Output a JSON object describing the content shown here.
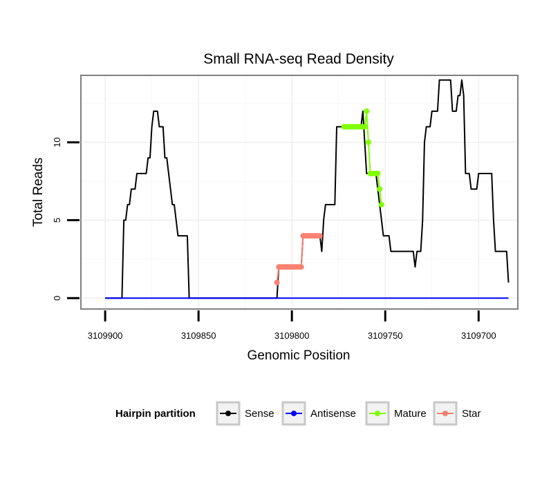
{
  "chart_data": {
    "type": "line",
    "title": "Small RNA-seq Read Density",
    "xlabel": "Genomic Position",
    "ylabel": "Total Reads",
    "x_reversed": true,
    "xlim": [
      3109679,
      3109913
    ],
    "ylim": [
      -0.7,
      14.3
    ],
    "x_ticks": [
      3109900,
      3109850,
      3109800,
      3109750,
      3109700
    ],
    "y_ticks": [
      0,
      5,
      10
    ],
    "grid": true,
    "legend_position": "bottom",
    "legend": {
      "title": "Hairpin partition",
      "entries": [
        {
          "label": "Sense",
          "color": "#000000"
        },
        {
          "label": "Antisense",
          "color": "#0000ff"
        },
        {
          "label": "Mature",
          "color": "#7fff00"
        },
        {
          "label": "Star",
          "color": "#fa8072"
        }
      ]
    },
    "series": [
      {
        "name": "Sense",
        "color": "#000000",
        "points": [
          [
            3109900,
            0
          ],
          [
            3109891,
            0
          ],
          [
            3109890,
            5
          ],
          [
            3109889,
            5
          ],
          [
            3109888,
            6
          ],
          [
            3109887,
            6
          ],
          [
            3109886,
            7
          ],
          [
            3109884,
            7
          ],
          [
            3109883,
            8
          ],
          [
            3109878,
            8
          ],
          [
            3109877,
            9
          ],
          [
            3109876,
            9
          ],
          [
            3109875,
            11
          ],
          [
            3109874,
            12
          ],
          [
            3109872,
            12
          ],
          [
            3109871,
            11
          ],
          [
            3109869,
            11
          ],
          [
            3109868,
            9
          ],
          [
            3109867,
            9
          ],
          [
            3109866,
            8
          ],
          [
            3109865,
            7
          ],
          [
            3109864,
            6
          ],
          [
            3109863,
            6
          ],
          [
            3109862,
            5
          ],
          [
            3109861,
            4
          ],
          [
            3109856,
            4
          ],
          [
            3109855,
            0
          ],
          [
            3109808,
            0
          ],
          [
            3109807,
            2
          ],
          [
            3109795,
            2
          ],
          [
            3109794,
            4
          ],
          [
            3109785,
            4
          ],
          [
            3109784,
            3
          ],
          [
            3109783,
            5
          ],
          [
            3109782,
            6
          ],
          [
            3109777,
            6
          ],
          [
            3109776,
            11
          ],
          [
            3109763,
            11
          ],
          [
            3109762,
            12
          ],
          [
            3109761,
            10
          ],
          [
            3109760,
            8
          ],
          [
            3109755,
            8
          ],
          [
            3109754,
            7
          ],
          [
            3109753,
            6
          ],
          [
            3109752,
            5
          ],
          [
            3109751,
            4
          ],
          [
            3109748,
            4
          ],
          [
            3109747,
            3
          ],
          [
            3109735,
            3
          ],
          [
            3109734,
            2
          ],
          [
            3109733,
            3
          ],
          [
            3109731,
            3
          ],
          [
            3109730,
            5
          ],
          [
            3109729,
            10
          ],
          [
            3109728,
            11
          ],
          [
            3109726,
            11
          ],
          [
            3109725,
            12
          ],
          [
            3109722,
            12
          ],
          [
            3109721,
            14
          ],
          [
            3109715,
            14
          ],
          [
            3109714,
            12
          ],
          [
            3109712,
            12
          ],
          [
            3109711,
            13
          ],
          [
            3109710,
            13
          ],
          [
            3109709,
            14
          ],
          [
            3109708,
            13
          ],
          [
            3109707,
            8
          ],
          [
            3109705,
            8
          ],
          [
            3109704,
            7
          ],
          [
            3109701,
            7
          ],
          [
            3109700,
            8
          ],
          [
            3109693,
            8
          ],
          [
            3109692,
            5
          ],
          [
            3109691,
            3
          ],
          [
            3109685,
            3
          ],
          [
            3109684,
            1
          ]
        ]
      },
      {
        "name": "Antisense",
        "color": "#0000ff",
        "points": [
          [
            3109900,
            0
          ],
          [
            3109684,
            0
          ]
        ]
      },
      {
        "name": "Mature",
        "color": "#7fff00",
        "points": [
          [
            3109772,
            11
          ],
          [
            3109771,
            11
          ],
          [
            3109770,
            11
          ],
          [
            3109769,
            11
          ],
          [
            3109768,
            11
          ],
          [
            3109767,
            11
          ],
          [
            3109766,
            11
          ],
          [
            3109765,
            11
          ],
          [
            3109764,
            11
          ],
          [
            3109763,
            11
          ],
          [
            3109762,
            11
          ],
          [
            3109761,
            11
          ],
          [
            3109760,
            12
          ],
          [
            3109759,
            10
          ],
          [
            3109758,
            8
          ],
          [
            3109757,
            8
          ],
          [
            3109756,
            8
          ],
          [
            3109755,
            8
          ],
          [
            3109754,
            8
          ],
          [
            3109753,
            7
          ],
          [
            3109752,
            6
          ]
        ]
      },
      {
        "name": "Star",
        "color": "#fa8072",
        "points": [
          [
            3109808,
            1
          ],
          [
            3109807,
            2
          ],
          [
            3109806,
            2
          ],
          [
            3109805,
            2
          ],
          [
            3109804,
            2
          ],
          [
            3109803,
            2
          ],
          [
            3109802,
            2
          ],
          [
            3109801,
            2
          ],
          [
            3109800,
            2
          ],
          [
            3109799,
            2
          ],
          [
            3109798,
            2
          ],
          [
            3109797,
            2
          ],
          [
            3109796,
            2
          ],
          [
            3109795,
            2
          ],
          [
            3109794,
            4
          ],
          [
            3109793,
            4
          ],
          [
            3109792,
            4
          ],
          [
            3109791,
            4
          ],
          [
            3109790,
            4
          ],
          [
            3109789,
            4
          ],
          [
            3109788,
            4
          ],
          [
            3109787,
            4
          ],
          [
            3109786,
            4
          ],
          [
            3109785,
            4
          ]
        ]
      }
    ]
  }
}
